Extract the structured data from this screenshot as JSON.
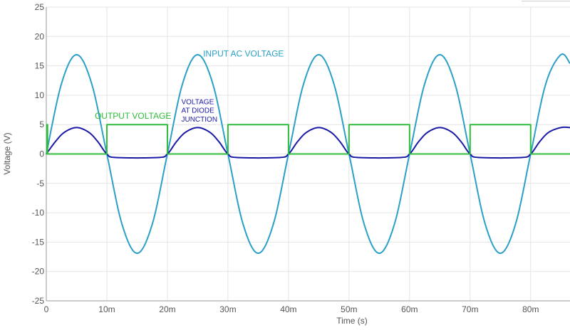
{
  "chart_data": {
    "type": "line",
    "xlabel": "Time (s)",
    "ylabel": "Voltage (V)",
    "xlim": [
      0,
      0.0865
    ],
    "ylim": [
      -25,
      25
    ],
    "grid": true,
    "legend": "none",
    "x_ticks": [
      {
        "value": 0,
        "label": "0"
      },
      {
        "value": 0.01,
        "label": "10m"
      },
      {
        "value": 0.02,
        "label": "20m"
      },
      {
        "value": 0.03,
        "label": "30m"
      },
      {
        "value": 0.04,
        "label": "40m"
      },
      {
        "value": 0.05,
        "label": "50m"
      },
      {
        "value": 0.06,
        "label": "60m"
      },
      {
        "value": 0.07,
        "label": "70m"
      },
      {
        "value": 0.08,
        "label": "80m"
      }
    ],
    "y_ticks": [
      {
        "value": 25,
        "label": "25"
      },
      {
        "value": 20,
        "label": "20"
      },
      {
        "value": 15,
        "label": "15"
      },
      {
        "value": 10,
        "label": "10"
      },
      {
        "value": 5,
        "label": "5"
      },
      {
        "value": 0,
        "label": "0"
      },
      {
        "value": -5,
        "label": "-5"
      },
      {
        "value": -10,
        "label": "-10"
      },
      {
        "value": -15,
        "label": "-15"
      },
      {
        "value": -20,
        "label": "-20"
      },
      {
        "value": -25,
        "label": "-25"
      }
    ],
    "series": [
      {
        "color": "#2aa0c8",
        "x": [
          0,
          0.0025,
          0.005,
          0.0075,
          0.01,
          0.0125,
          0.015,
          0.0175,
          0.02,
          0.0225,
          0.025,
          0.0275,
          0.03,
          0.0325,
          0.035,
          0.0375,
          0.04,
          0.0425,
          0.045,
          0.0475,
          0.05,
          0.0525,
          0.055,
          0.0575,
          0.06,
          0.0625,
          0.065,
          0.0675,
          0.07,
          0.0725,
          0.075,
          0.0775,
          0.08,
          0.0825,
          0.085,
          0.0865
        ],
        "y": [
          0,
          11.95,
          16.9,
          11.95,
          0,
          -11.95,
          -16.9,
          -11.95,
          0,
          11.95,
          16.9,
          11.95,
          0,
          -11.95,
          -16.9,
          -11.95,
          0,
          11.95,
          16.9,
          11.95,
          0,
          -11.95,
          -16.9,
          -11.95,
          0,
          11.95,
          16.9,
          11.95,
          0,
          -11.95,
          -16.9,
          -11.95,
          0,
          11.95,
          16.9,
          15.4
        ]
      },
      {
        "color": "#1a1aa6",
        "x": [
          0,
          0.0015,
          0.003,
          0.005,
          0.007,
          0.0085,
          0.01,
          0.0115,
          0.0185,
          0.02,
          0.0215,
          0.023,
          0.025,
          0.027,
          0.0285,
          0.03,
          0.0315,
          0.0385,
          0.04,
          0.0415,
          0.043,
          0.045,
          0.047,
          0.0485,
          0.05,
          0.0515,
          0.0585,
          0.06,
          0.0615,
          0.063,
          0.065,
          0.067,
          0.0685,
          0.07,
          0.0715,
          0.0785,
          0.08,
          0.0815,
          0.083,
          0.085,
          0.0865
        ],
        "y": [
          0,
          2.1,
          3.7,
          4.5,
          3.7,
          2.1,
          0,
          -0.6,
          -0.6,
          0,
          2.1,
          3.7,
          4.5,
          3.7,
          2.1,
          0,
          -0.6,
          -0.6,
          0,
          2.1,
          3.7,
          4.5,
          3.7,
          2.1,
          0,
          -0.6,
          -0.6,
          0,
          2.1,
          3.7,
          4.5,
          3.7,
          2.1,
          0,
          -0.6,
          -0.6,
          0,
          2.1,
          3.7,
          4.5,
          4.5
        ]
      },
      {
        "color": "#2ebd3a",
        "x": [
          0,
          0.0001,
          0.0001,
          0.0002,
          0.0002,
          0.01,
          0.01,
          0.02,
          0.02,
          0.03,
          0.03,
          0.04,
          0.04,
          0.05,
          0.05,
          0.06,
          0.06,
          0.07,
          0.07,
          0.08,
          0.08,
          0.0865
        ],
        "y": [
          0,
          0,
          5,
          5,
          0,
          0,
          5,
          5,
          0,
          0,
          5,
          5,
          0,
          0,
          5,
          5,
          0,
          0,
          5,
          5,
          0,
          0
        ]
      }
    ],
    "annotations": [
      {
        "text": "INPUT AC VOLTAGE",
        "x": 0.0259,
        "y": 16.6,
        "color": "#2aa0c8"
      },
      {
        "text": "OUTPUT VOLTAGE",
        "x": 0.008,
        "y": 6.0,
        "color": "#2ebd3a"
      },
      {
        "text": "VOLTAGE",
        "x": 0.0223,
        "y": 8.5,
        "color": "#1a1aa6"
      },
      {
        "text": "AT DIODE",
        "x": 0.0223,
        "y": 7.0,
        "color": "#1a1aa6"
      },
      {
        "text": "JUNCTION",
        "x": 0.0223,
        "y": 5.5,
        "color": "#1a1aa6"
      }
    ]
  }
}
